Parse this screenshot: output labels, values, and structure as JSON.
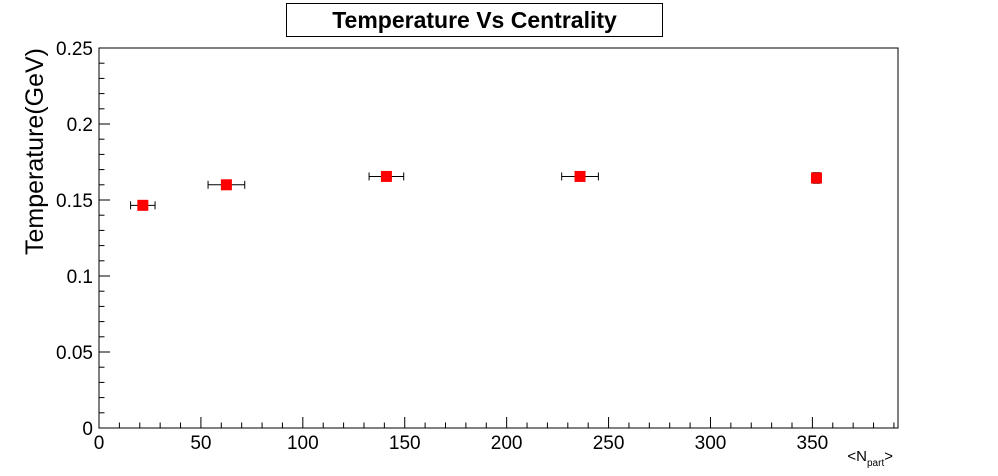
{
  "chart_data": {
    "type": "scatter",
    "title": "Temperature Vs Centrality",
    "ylabel": "Temperature(GeV)",
    "xlabel": {
      "prefix": "<N",
      "sub": "part",
      "suffix": ">"
    },
    "xlim": [
      0,
      392
    ],
    "ylim": [
      0,
      0.25
    ],
    "x_ticks": [
      0,
      50,
      100,
      150,
      200,
      250,
      300,
      350
    ],
    "x_tick_labels": [
      "0",
      "50",
      "100",
      "150",
      "200",
      "250",
      "300",
      "350"
    ],
    "y_ticks": [
      0,
      0.05,
      0.1,
      0.15,
      0.2,
      0.25
    ],
    "y_tick_labels": [
      "0",
      "0.05",
      "0.1",
      "0.15",
      "0.2",
      "0.25"
    ],
    "grid": false,
    "marker_color": "#ff0000",
    "points": [
      {
        "x": 21.5,
        "y": 0.1465,
        "xerr": 6.0,
        "yerr": 0.002
      },
      {
        "x": 62.5,
        "y": 0.16,
        "xerr": 9.0,
        "yerr": 0.002
      },
      {
        "x": 141,
        "y": 0.1655,
        "xerr": 8.5,
        "yerr": 0.002
      },
      {
        "x": 236,
        "y": 0.1655,
        "xerr": 9.0,
        "yerr": 0.003
      },
      {
        "x": 352,
        "y": 0.1645,
        "xerr": 1.5,
        "yerr": 0.0035
      }
    ]
  }
}
